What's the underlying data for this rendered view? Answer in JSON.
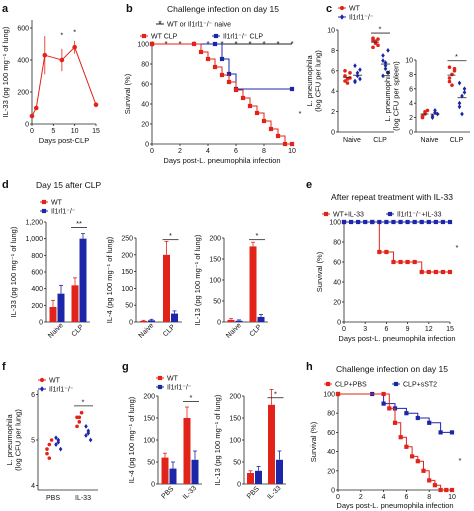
{
  "colors": {
    "wt": "#e2231a",
    "ko": "#1b27a8",
    "naive": "#222222",
    "axis": "#222222"
  },
  "chart_data": [
    {
      "panel": "a",
      "type": "line",
      "x": [
        0,
        1,
        3,
        7,
        10,
        15
      ],
      "series": [
        {
          "name": "",
          "values": [
            50,
            100,
            430,
            400,
            480,
            120
          ],
          "err": [
            0,
            0,
            120,
            70,
            40,
            0
          ]
        }
      ],
      "xlabel": "Days post-CLP",
      "ylabel": "IL-33 (pg 100 mg⁻¹ of lung)",
      "xticks": [
        "0",
        "5",
        "10",
        "15"
      ],
      "yticks": [
        "0",
        "200",
        "400",
        "600"
      ],
      "xlim": [
        0,
        15
      ],
      "ylim": [
        0,
        650
      ],
      "annotations": [
        "*",
        "*"
      ]
    },
    {
      "panel": "b",
      "type": "line",
      "title": "Challenge infection on day 15",
      "legend": [
        "WT or Il1rl1⁻/⁻ naive",
        "WT CLP",
        "Il1rl1⁻/⁻ CLP"
      ],
      "series": [
        {
          "name": "WT or Il1rl1⁻/⁻ naive",
          "x": [
            0,
            1,
            2,
            3,
            4,
            5,
            6,
            7,
            8,
            9,
            10
          ],
          "values": [
            100,
            100,
            100,
            100,
            100,
            100,
            100,
            100,
            100,
            100,
            100
          ]
        },
        {
          "name": "WT CLP",
          "x": [
            0,
            3,
            3.5,
            4,
            4.5,
            5,
            5.5,
            6,
            6.5,
            7,
            7.5,
            8,
            8.5,
            9,
            9.5,
            10
          ],
          "values": [
            100,
            100,
            92,
            85,
            77,
            69,
            62,
            54,
            46,
            38,
            31,
            23,
            15,
            8,
            0,
            0
          ]
        },
        {
          "name": "Il1rl1⁻/⁻ CLP",
          "x": [
            0,
            4.5,
            5,
            5.5,
            6,
            10
          ],
          "values": [
            100,
            100,
            85,
            70,
            55,
            55
          ]
        }
      ],
      "xlabel": "Days post-L. pneumophila infection",
      "ylabel": "Survival (%)",
      "xticks": [
        "0",
        "2",
        "4",
        "6",
        "8",
        "10"
      ],
      "yticks": [
        "0",
        "20",
        "40",
        "60",
        "80",
        "100"
      ],
      "xlim": [
        0,
        10
      ],
      "ylim": [
        0,
        100
      ],
      "annotations": [
        "*"
      ]
    },
    {
      "panel": "c",
      "type": "scatter",
      "legend": [
        "WT",
        "Il1rl1⁻/⁻"
      ],
      "subplots": [
        {
          "ylabel": "L. pneumophila (log CFU per lung)",
          "yticks": [
            "0",
            "2",
            "4",
            "6",
            "8",
            "10"
          ],
          "ylim": [
            0,
            10
          ],
          "categories": [
            "Naive",
            "CLP"
          ],
          "wt": [
            [
              5.5,
              5.2,
              5.8,
              6.0,
              4.8,
              5.3,
              5.0
            ],
            [
              9.0,
              8.8,
              8.5,
              9.2,
              8.7,
              9.1,
              8.3,
              8.9
            ]
          ],
          "ko": [
            [
              5.0,
              5.5,
              6.1,
              4.9,
              5.8,
              5.2,
              6.5
            ],
            [
              7.5,
              6.5,
              5.8,
              7.0,
              6.2,
              8.0,
              5.5,
              6.8
            ]
          ],
          "annotations": [
            "*"
          ]
        },
        {
          "ylabel": "L. pneumophila (log CFU per spleen)",
          "yticks": [
            "0",
            "2",
            "4",
            "6",
            "8",
            "10"
          ],
          "ylim": [
            0,
            10
          ],
          "categories": [
            "Naive",
            "CLP"
          ],
          "wt": [
            [
              2.0,
              2.5,
              3.0,
              2.2,
              2.8
            ],
            [
              7.0,
              8.0,
              8.8,
              7.5,
              6.5,
              8.5,
              9.0
            ]
          ],
          "ko": [
            [
              2.2,
              3.0,
              2.5,
              2.0,
              2.7
            ],
            [
              4.0,
              5.0,
              6.0,
              3.5,
              2.5,
              5.5,
              6.8
            ]
          ],
          "annotations": [
            "*"
          ]
        }
      ]
    },
    {
      "panel": "d",
      "type": "bar",
      "title": "Day 15 after CLP",
      "legend": [
        "WT",
        "Il1rl1⁻/⁻"
      ],
      "categories": [
        "Naive",
        "CLP"
      ],
      "subplots": [
        {
          "ylabel": "IL-33 (pg 100 mg⁻¹ of lung)",
          "yticks": [
            "0",
            "200",
            "400",
            "600",
            "800",
            "1,000",
            "1,200"
          ],
          "ylim": [
            0,
            1200
          ],
          "series": [
            {
              "name": "WT",
              "values": [
                180,
                440
              ],
              "err": [
                80,
                90
              ]
            },
            {
              "name": "Il1rl1⁻/⁻",
              "values": [
                340,
                1000
              ],
              "err": [
                100,
                60
              ]
            }
          ],
          "annotations": [
            "**"
          ]
        },
        {
          "ylabel": "IL-4 (pg 100 mg⁻¹ of lung)",
          "yticks": [
            "0",
            "50",
            "100",
            "150",
            "200",
            "250"
          ],
          "ylim": [
            0,
            250
          ],
          "series": [
            {
              "name": "WT",
              "values": [
                3,
                200
              ],
              "err": [
                2,
                40
              ]
            },
            {
              "name": "Il1rl1⁻/⁻",
              "values": [
                5,
                25
              ],
              "err": [
                3,
                8
              ]
            }
          ],
          "annotations": [
            "*"
          ]
        },
        {
          "ylabel": "IL-13 (pg 100 mg⁻¹ of lung)",
          "yticks": [
            "0",
            "50",
            "100",
            "150",
            "200"
          ],
          "ylim": [
            0,
            200
          ],
          "series": [
            {
              "name": "WT",
              "values": [
                5,
                180
              ],
              "err": [
                3,
                10
              ]
            },
            {
              "name": "Il1rl1⁻/⁻",
              "values": [
                3,
                12
              ],
              "err": [
                2,
                6
              ]
            }
          ],
          "annotations": [
            "*"
          ]
        }
      ]
    },
    {
      "panel": "e",
      "type": "line",
      "title": "After repeat treatment with IL-33",
      "legend": [
        "WT+IL-33",
        "Il1rl1⁻/⁻+IL-33"
      ],
      "series": [
        {
          "name": "WT+IL-33",
          "x": [
            0,
            4,
            5,
            6,
            7,
            8,
            9,
            10,
            11,
            12,
            13,
            14,
            15
          ],
          "values": [
            100,
            100,
            70,
            70,
            60,
            60,
            60,
            60,
            50,
            50,
            50,
            50,
            50
          ]
        },
        {
          "name": "Il1rl1⁻/⁻+IL-33",
          "x": [
            0,
            1,
            2,
            3,
            4,
            5,
            6,
            7,
            8,
            9,
            10,
            11,
            12,
            13,
            14,
            15
          ],
          "values": [
            100,
            100,
            100,
            100,
            100,
            100,
            100,
            100,
            100,
            100,
            100,
            100,
            100,
            100,
            100,
            100
          ]
        }
      ],
      "xlabel": "Days post-L. pneumophila infection",
      "ylabel": "Survival (%)",
      "xticks": [
        "0",
        "3",
        "6",
        "9",
        "12",
        "15"
      ],
      "yticks": [
        "0",
        "20",
        "40",
        "60",
        "80",
        "100"
      ],
      "xlim": [
        0,
        15
      ],
      "ylim": [
        0,
        100
      ],
      "annotations": [
        "*"
      ]
    },
    {
      "panel": "f",
      "type": "scatter",
      "legend": [
        "WT",
        "Il1rl1⁻/⁻"
      ],
      "categories": [
        "PBS",
        "IL-33"
      ],
      "ylabel": "L. pneumophila (log CFU per lung)",
      "yticks": [
        "4",
        "5",
        "6"
      ],
      "ylim": [
        3.9,
        6.1
      ],
      "wt": [
        [
          4.8,
          4.6,
          5.0,
          4.7,
          4.9
        ],
        [
          5.5,
          5.4,
          5.6,
          5.3,
          5.5
        ]
      ],
      "ko": [
        [
          4.9,
          5.0,
          4.8,
          5.05,
          4.95
        ],
        [
          5.1,
          5.2,
          5.0,
          5.3,
          5.15
        ]
      ],
      "annotations": [
        "*"
      ]
    },
    {
      "panel": "g",
      "type": "bar",
      "legend": [
        "WT",
        "Il1rl1⁻/⁻"
      ],
      "categories": [
        "PBS",
        "IL-33"
      ],
      "subplots": [
        {
          "ylabel": "IL-4 (pg 100 mg⁻¹ of lung)",
          "yticks": [
            "0",
            "50",
            "100",
            "150",
            "200"
          ],
          "ylim": [
            0,
            200
          ],
          "series": [
            {
              "name": "WT",
              "values": [
                60,
                150
              ],
              "err": [
                10,
                25
              ]
            },
            {
              "name": "Il1rl1⁻/⁻",
              "values": [
                35,
                55
              ],
              "err": [
                15,
                20
              ]
            }
          ],
          "annotations": [
            "*"
          ]
        },
        {
          "ylabel": "IL-13 (pg 100 mg⁻¹ of lung)",
          "yticks": [
            "0",
            "50",
            "100",
            "150",
            "200"
          ],
          "ylim": [
            0,
            200
          ],
          "series": [
            {
              "name": "WT",
              "values": [
                25,
                180
              ],
              "err": [
                5,
                35
              ]
            },
            {
              "name": "Il1rl1⁻/⁻",
              "values": [
                30,
                55
              ],
              "err": [
                10,
                20
              ]
            }
          ],
          "annotations": [
            "*"
          ]
        }
      ]
    },
    {
      "panel": "h",
      "type": "line",
      "title": "Challenge infection on day 15",
      "legend": [
        "CLP+PBS",
        "CLP+sST2"
      ],
      "series": [
        {
          "name": "CLP+PBS",
          "x": [
            0,
            4,
            4.5,
            5,
            5.5,
            6,
            6.5,
            7,
            7.5,
            8,
            8.5,
            9,
            9.5,
            10
          ],
          "values": [
            100,
            100,
            85,
            70,
            55,
            45,
            35,
            30,
            20,
            10,
            5,
            0,
            0,
            0
          ]
        },
        {
          "name": "CLP+sST2",
          "x": [
            0,
            3,
            4,
            5,
            6,
            7,
            8,
            9,
            10
          ],
          "values": [
            100,
            100,
            90,
            85,
            80,
            75,
            70,
            60,
            60
          ]
        }
      ],
      "xlabel": "Days post-L. pneumophila infection",
      "ylabel": "Survival (%)",
      "xticks": [
        "0",
        "2",
        "4",
        "6",
        "8",
        "10"
      ],
      "yticks": [
        "0",
        "20",
        "40",
        "60",
        "80",
        "100"
      ],
      "xlim": [
        0,
        10
      ],
      "ylim": [
        0,
        100
      ],
      "annotations": [
        "*"
      ]
    }
  ]
}
